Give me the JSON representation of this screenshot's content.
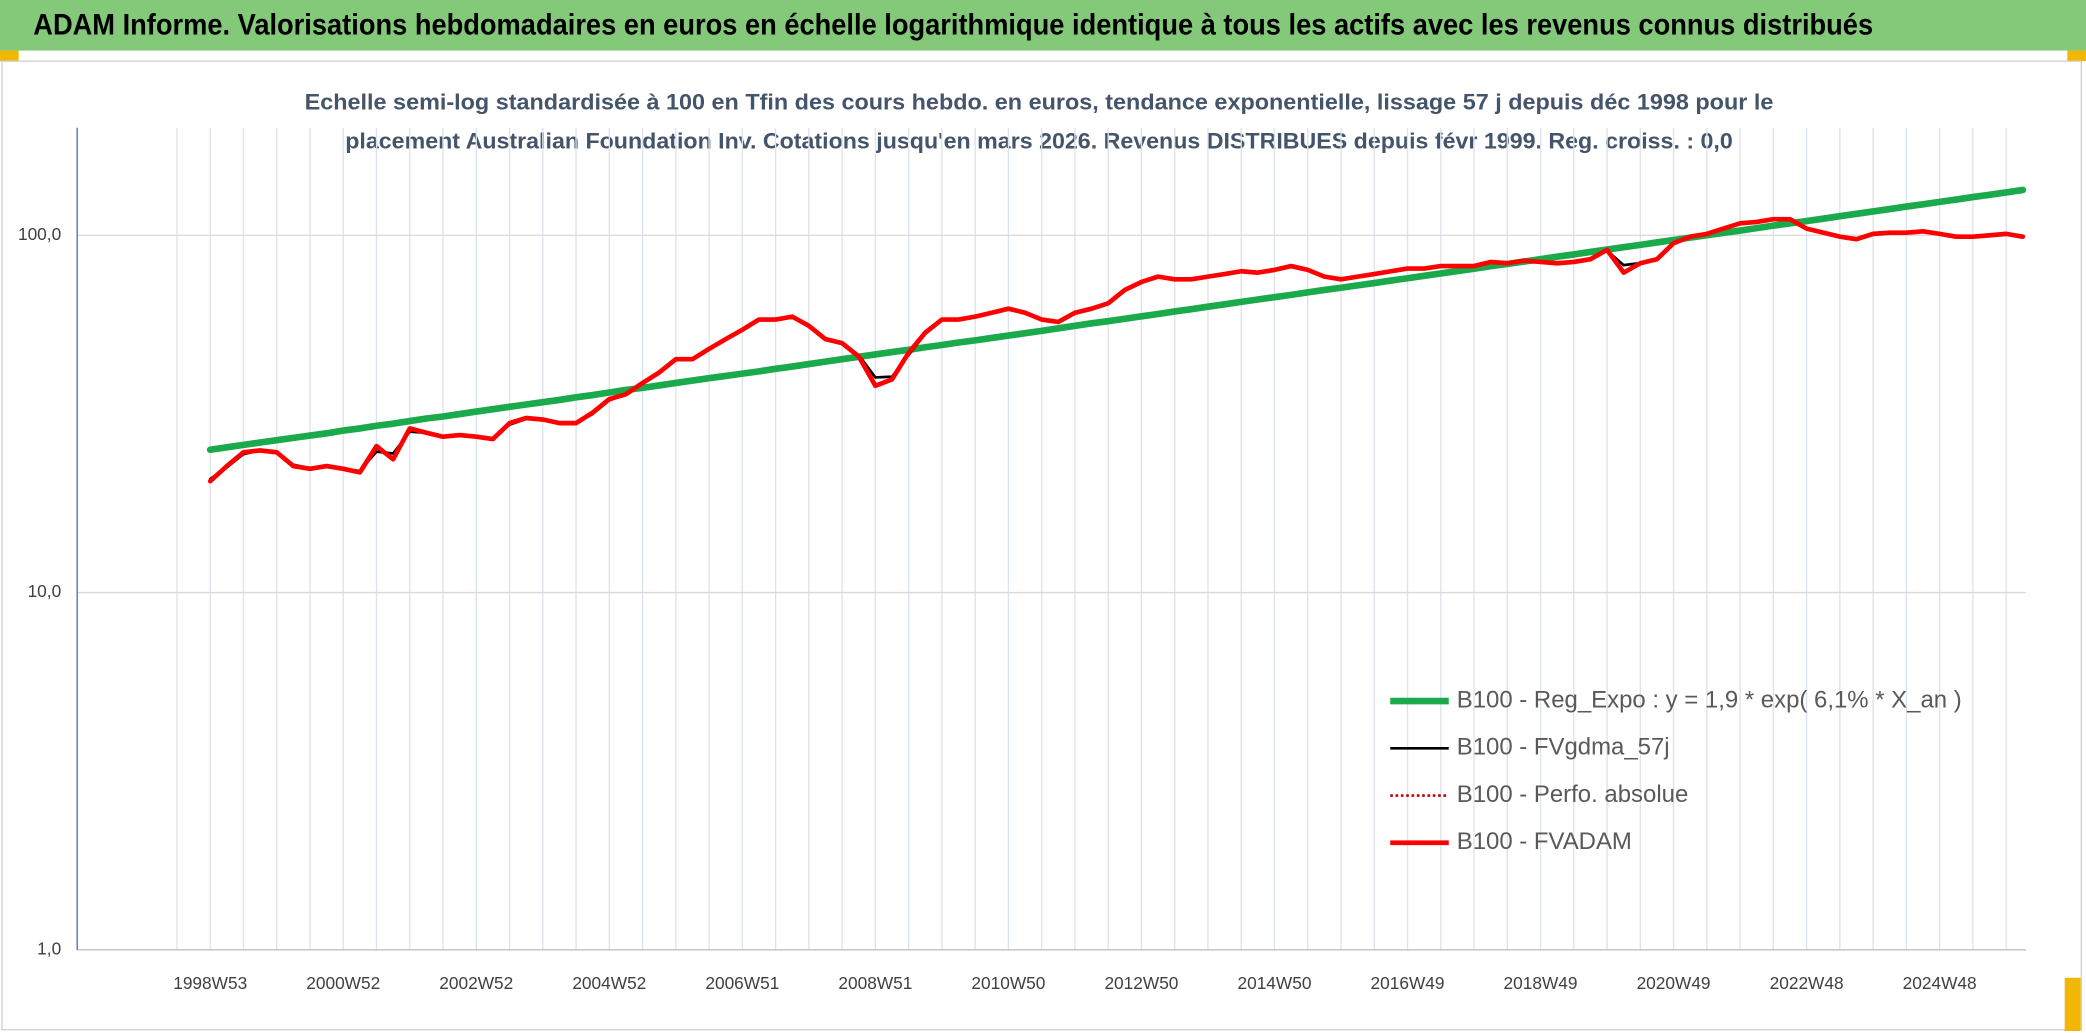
{
  "chart_data": {
    "type": "line",
    "header": "ADAM Informe. Valorisations hebdomadaires en euros en échelle logarithmique identique à tous les actifs avec les revenus connus distribués",
    "subtitle_lines": [
      "Echelle semi-log standardisée à 100 en Tfin des cours hebdo. en euros, tendance exponentielle, lissage 57 j depuis déc 1998 pour le",
      "placement Australian Foundation Inv. Cotations jusqu'en mars 2026. Revenus DISTRIBUES depuis févr 1999. Reg. croiss. : 0,0"
    ],
    "log_y": true,
    "grid": true,
    "ylim": [
      1,
      200
    ],
    "yticks": [
      {
        "value": 1,
        "label": "1,0"
      },
      {
        "value": 10,
        "label": "10,0"
      },
      {
        "value": 100,
        "label": "100,0"
      }
    ],
    "categories": [
      "1998W53",
      null,
      null,
      null,
      null,
      null,
      null,
      null,
      "2000W52",
      null,
      null,
      null,
      null,
      null,
      null,
      null,
      "2002W52",
      null,
      null,
      null,
      null,
      null,
      null,
      null,
      "2004W52",
      null,
      null,
      null,
      null,
      null,
      null,
      null,
      "2006W51",
      null,
      null,
      null,
      null,
      null,
      null,
      null,
      "2008W51",
      null,
      null,
      null,
      null,
      null,
      null,
      null,
      "2010W50",
      null,
      null,
      null,
      null,
      null,
      null,
      null,
      "2012W50",
      null,
      null,
      null,
      null,
      null,
      null,
      null,
      "2014W50",
      null,
      null,
      null,
      null,
      null,
      null,
      null,
      "2016W49",
      null,
      null,
      null,
      null,
      null,
      null,
      null,
      "2018W49",
      null,
      null,
      null,
      null,
      null,
      null,
      null,
      "2020W49",
      null,
      null,
      null,
      null,
      null,
      null,
      null,
      "2022W48",
      null,
      null,
      null,
      null,
      null,
      null,
      null,
      "2024W48",
      null,
      null,
      null,
      null,
      null
    ],
    "legend_position": "lower right",
    "series": [
      {
        "name": "B100 - Reg_Expo : y = 1,9 * exp( 6,1% *  X_an )",
        "color": "#1aaa4c",
        "style": "solid",
        "values": [
          25.1,
          25.5,
          25.9,
          26.3,
          26.7,
          27.1,
          27.5,
          27.9,
          28.4,
          28.8,
          29.3,
          29.7,
          30.2,
          30.7,
          31.1,
          31.6,
          32.1,
          32.6,
          33.1,
          33.6,
          34.1,
          34.6,
          35.2,
          35.7,
          36.3,
          36.9,
          37.4,
          38.0,
          38.6,
          39.2,
          39.8,
          40.4,
          41.0,
          41.6,
          42.3,
          42.9,
          43.6,
          44.3,
          45.0,
          45.7,
          46.4,
          47.1,
          47.8,
          48.6,
          49.3,
          50.1,
          50.8,
          51.6,
          52.4,
          53.2,
          54.0,
          54.9,
          55.8,
          56.7,
          57.5,
          58.4,
          59.3,
          60.2,
          61.2,
          62.1,
          63.1,
          64.1,
          65.1,
          66.1,
          67.1,
          68.1,
          69.2,
          70.3,
          71.3,
          72.4,
          73.5,
          74.7,
          75.8,
          77.0,
          78.2,
          79.4,
          80.6,
          81.9,
          83.1,
          84.4,
          85.7,
          87.1,
          88.4,
          89.8,
          91.2,
          92.6,
          94.0,
          95.5,
          97.0,
          98.5,
          100.0,
          101.6,
          103.1,
          104.7,
          106.4,
          108.0,
          109.6,
          111.3,
          113.1,
          114.8,
          116.6,
          118.4,
          120.3,
          122.1,
          124.0,
          125.9,
          127.9,
          129.8,
          131.8,
          133.9
        ]
      },
      {
        "name": "B100 - FVgdma_57j",
        "color": "#000000",
        "style": "solid",
        "values": [
          20.8,
          22.4,
          24.4,
          25.0,
          24.6,
          22.8,
          22.3,
          22.5,
          22.2,
          21.9,
          24.8,
          24.5,
          28.2,
          28.0,
          27.4,
          27.5,
          27.3,
          27.0,
          29.5,
          30.6,
          30.5,
          29.9,
          29.8,
          31.6,
          34.5,
          35.8,
          38.4,
          41.1,
          44.7,
          45.0,
          48.0,
          51.0,
          54.2,
          57.8,
          58.0,
          58.8,
          56.0,
          51.5,
          49.8,
          46.2,
          40.0,
          40.2,
          46.2,
          53.0,
          57.8,
          58.1,
          59.1,
          60.6,
          62.1,
          60.8,
          58.3,
          57.4,
          60.5,
          62.2,
          64.3,
          70.0,
          73.8,
          76.4,
          75.4,
          75.3,
          76.5,
          77.8,
          79.2,
          78.7,
          79.9,
          81.8,
          80.1,
          76.8,
          75.4,
          76.5,
          77.8,
          79.2,
          80.6,
          80.7,
          81.9,
          82.0,
          82.0,
          84.0,
          83.6,
          84.8,
          84.2,
          83.6,
          84.2,
          85.6,
          90.5,
          82.5,
          83.6,
          85.8,
          94.6,
          99.0,
          100.8,
          104.3,
          107.8,
          108.9,
          110.7,
          110.8,
          104.6,
          101.8,
          99.2,
          97.6,
          100.8,
          101.6,
          101.7,
          102.5,
          100.9,
          99.2,
          99.1,
          100.0,
          100.8,
          99.2
        ]
      },
      {
        "name": "B100 - Perfo. absolue",
        "color": "#c00000",
        "style": "dotted",
        "values": [
          20.5,
          22.6,
          24.7,
          25.0,
          24.7,
          22.6,
          22.2,
          22.6,
          22.2,
          21.7,
          25.7,
          23.6,
          28.8,
          28.0,
          27.3,
          27.6,
          27.3,
          26.9,
          29.8,
          30.8,
          30.5,
          29.8,
          29.8,
          31.9,
          34.8,
          35.9,
          38.6,
          41.3,
          45.0,
          45.0,
          48.1,
          51.2,
          54.4,
          58.1,
          58.1,
          59.2,
          55.8,
          51.2,
          49.9,
          45.8,
          37.9,
          39.5,
          46.9,
          53.4,
          58.1,
          58.1,
          59.2,
          60.7,
          62.3,
          60.7,
          58.1,
          57.2,
          60.7,
          62.3,
          64.5,
          70.3,
          74.0,
          76.6,
          75.3,
          75.3,
          76.6,
          77.9,
          79.3,
          78.6,
          80.0,
          82.0,
          80.0,
          76.6,
          75.3,
          76.6,
          77.9,
          79.3,
          80.7,
          80.7,
          82.0,
          82.0,
          82.0,
          84.2,
          83.5,
          84.9,
          84.2,
          83.5,
          84.2,
          85.7,
          91.0,
          78.6,
          83.5,
          85.7,
          95.0,
          99.1,
          100.9,
          104.4,
          108.0,
          109.0,
          110.9,
          110.9,
          104.4,
          101.7,
          99.1,
          97.5,
          100.9,
          101.7,
          101.7,
          102.6,
          100.9,
          99.1,
          99.1,
          100.0,
          100.9,
          99.1
        ]
      },
      {
        "name": "B100 - FVADAM",
        "color": "#ff0000",
        "style": "solid",
        "values": [
          20.5,
          22.6,
          24.7,
          25.0,
          24.7,
          22.6,
          22.2,
          22.6,
          22.2,
          21.7,
          25.7,
          23.6,
          28.8,
          28.0,
          27.3,
          27.6,
          27.3,
          26.9,
          29.8,
          30.8,
          30.5,
          29.8,
          29.8,
          31.9,
          34.8,
          35.9,
          38.6,
          41.3,
          45.0,
          45.0,
          48.1,
          51.2,
          54.4,
          58.1,
          58.1,
          59.2,
          55.8,
          51.2,
          49.9,
          45.8,
          37.9,
          39.5,
          46.9,
          53.4,
          58.1,
          58.1,
          59.2,
          60.7,
          62.3,
          60.7,
          58.1,
          57.2,
          60.7,
          62.3,
          64.5,
          70.3,
          74.0,
          76.6,
          75.3,
          75.3,
          76.6,
          77.9,
          79.3,
          78.6,
          80.0,
          82.0,
          80.0,
          76.6,
          75.3,
          76.6,
          77.9,
          79.3,
          80.7,
          80.7,
          82.0,
          82.0,
          82.0,
          84.2,
          83.5,
          84.9,
          84.2,
          83.5,
          84.2,
          85.7,
          91.0,
          78.6,
          83.5,
          85.7,
          95.0,
          99.1,
          100.9,
          104.4,
          108.0,
          109.0,
          110.9,
          110.9,
          104.4,
          101.7,
          99.1,
          97.5,
          100.9,
          101.7,
          101.7,
          102.6,
          100.9,
          99.1,
          99.1,
          100.0,
          100.9,
          99.1
        ]
      }
    ]
  }
}
